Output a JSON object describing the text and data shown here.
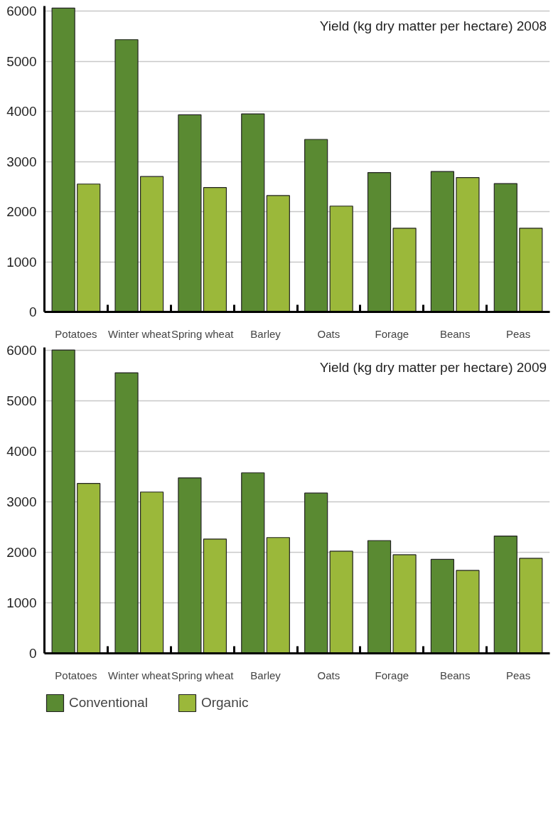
{
  "chart_data": [
    {
      "type": "bar",
      "title": "Yield (kg dry matter per hectare) 2008",
      "categories": [
        "Potatoes",
        "Winter wheat",
        "Spring wheat",
        "Barley",
        "Oats",
        "Forage",
        "Beans",
        "Peas"
      ],
      "series": [
        {
          "color": "#5a8a32",
          "values": [
            6060,
            5430,
            3930,
            3950,
            3440,
            2780,
            2800,
            2560
          ]
        },
        {
          "color": "#9bb83a",
          "values": [
            2550,
            2700,
            2480,
            2320,
            2110,
            1670,
            2680,
            1670
          ]
        }
      ],
      "ylim": [
        0,
        6100
      ],
      "yticks": [
        0,
        1000,
        2000,
        3000,
        4000,
        5000,
        6000
      ],
      "grid": "y"
    },
    {
      "type": "bar",
      "title": "Yield (kg dry matter per hectare) 2009",
      "categories": [
        "Potatoes",
        "Winter wheat",
        "Spring wheat",
        "Barley",
        "Oats",
        "Forage",
        "Beans",
        "Peas"
      ],
      "series": [
        {
          "name": "Conventional",
          "color": "#5a8a32",
          "values": [
            6000,
            5550,
            3470,
            3570,
            3170,
            2230,
            1860,
            2320
          ]
        },
        {
          "name": "Organic",
          "color": "#9bb83a",
          "values": [
            3360,
            3190,
            2260,
            2290,
            2020,
            1950,
            1640,
            1880
          ]
        }
      ],
      "ylim": [
        0,
        6050
      ],
      "yticks": [
        0,
        1000,
        2000,
        3000,
        4000,
        5000,
        6000
      ],
      "grid": "y",
      "legend": "bottom"
    }
  ]
}
